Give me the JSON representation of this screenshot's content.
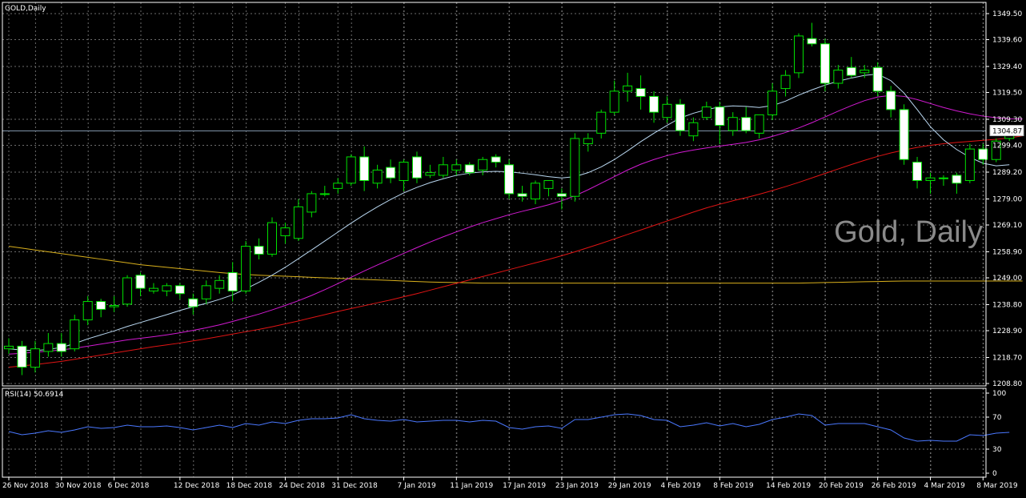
{
  "window": {
    "title": "GOLD,Daily"
  },
  "watermark": "Gold, Daily",
  "price_tag": "1304.87",
  "rsi_label": "RSI(14) 50.6914",
  "colors": {
    "background": "#000000",
    "grid": "#6b6b6b",
    "bull_candle": "#000000",
    "bear_candle": "#ffffff",
    "wick": "#00e000",
    "ma_fast": "#b9d7f0",
    "ma_mid": "#d21ad2",
    "ma_slow": "#e01414",
    "ma_long": "#d9b01c",
    "rsi_line": "#4a78ff"
  },
  "chart_data": [
    {
      "type": "candlestick",
      "title": "GOLD,Daily",
      "ylim": [
        1208.8,
        1354.5
      ],
      "y_ticks": [
        "1349.50",
        "1339.60",
        "1329.40",
        "1319.50",
        "1309.30",
        "1299.40",
        "1289.20",
        "1279.00",
        "1269.10",
        "1258.90",
        "1249.00",
        "1238.80",
        "1228.90",
        "1218.70",
        "1208.80"
      ],
      "x_tick_labels": [
        {
          "label": "26 Nov 2018",
          "index": 0
        },
        {
          "label": "30 Nov 2018",
          "index": 4
        },
        {
          "label": "6 Dec 2018",
          "index": 8
        },
        {
          "label": "12 Dec 2018",
          "index": 13
        },
        {
          "label": "18 Dec 2018",
          "index": 17
        },
        {
          "label": "24 Dec 2018",
          "index": 21
        },
        {
          "label": "31 Dec 2018",
          "index": 25
        },
        {
          "label": "7 Jan 2019",
          "index": 30
        },
        {
          "label": "11 Jan 2019",
          "index": 34
        },
        {
          "label": "17 Jan 2019",
          "index": 38
        },
        {
          "label": "23 Jan 2019",
          "index": 42
        },
        {
          "label": "29 Jan 2019",
          "index": 46
        },
        {
          "label": "4 Feb 2019",
          "index": 50
        },
        {
          "label": "8 Feb 2019",
          "index": 54
        },
        {
          "label": "14 Feb 2019",
          "index": 58
        },
        {
          "label": "20 Feb 2019",
          "index": 62
        },
        {
          "label": "26 Feb 2019",
          "index": 66
        },
        {
          "label": "4 Mar 2019",
          "index": 70
        },
        {
          "label": "8 Mar 2019",
          "index": 74
        }
      ],
      "last_price": 1304.87,
      "candles": [
        {
          "o": 1222.0,
          "h": 1226.0,
          "l": 1220.0,
          "c": 1223.0
        },
        {
          "o": 1223.0,
          "h": 1225.0,
          "l": 1212.0,
          "c": 1215.0
        },
        {
          "o": 1215.0,
          "h": 1225.0,
          "l": 1213.0,
          "c": 1222.0
        },
        {
          "o": 1221.0,
          "h": 1228.0,
          "l": 1219.0,
          "c": 1224.0
        },
        {
          "o": 1224.0,
          "h": 1228.0,
          "l": 1219.0,
          "c": 1221.0
        },
        {
          "o": 1222.0,
          "h": 1235.0,
          "l": 1221.0,
          "c": 1233.0
        },
        {
          "o": 1233.0,
          "h": 1242.0,
          "l": 1231.0,
          "c": 1240.0
        },
        {
          "o": 1240.0,
          "h": 1241.0,
          "l": 1234.0,
          "c": 1237.0
        },
        {
          "o": 1238.0,
          "h": 1242.0,
          "l": 1236.0,
          "c": 1238.5
        },
        {
          "o": 1239.0,
          "h": 1250.0,
          "l": 1238.0,
          "c": 1249.0
        },
        {
          "o": 1250.0,
          "h": 1251.0,
          "l": 1242.0,
          "c": 1245.0
        },
        {
          "o": 1244.0,
          "h": 1247.0,
          "l": 1243.0,
          "c": 1245.0
        },
        {
          "o": 1244.0,
          "h": 1247.0,
          "l": 1242.0,
          "c": 1246.0
        },
        {
          "o": 1246.0,
          "h": 1247.0,
          "l": 1241.0,
          "c": 1243.0
        },
        {
          "o": 1241.0,
          "h": 1243.0,
          "l": 1235.0,
          "c": 1238.0
        },
        {
          "o": 1241.0,
          "h": 1248.0,
          "l": 1239.0,
          "c": 1246.0
        },
        {
          "o": 1245.0,
          "h": 1250.0,
          "l": 1243.0,
          "c": 1248.0
        },
        {
          "o": 1251.0,
          "h": 1255.0,
          "l": 1240.0,
          "c": 1244.0
        },
        {
          "o": 1244.0,
          "h": 1263.0,
          "l": 1243.0,
          "c": 1261.0
        },
        {
          "o": 1261.0,
          "h": 1264.0,
          "l": 1256.0,
          "c": 1258.0
        },
        {
          "o": 1258.0,
          "h": 1272.0,
          "l": 1257.0,
          "c": 1270.0
        },
        {
          "o": 1265.0,
          "h": 1270.0,
          "l": 1262.0,
          "c": 1268.0
        },
        {
          "o": 1264.0,
          "h": 1279.0,
          "l": 1263.0,
          "c": 1276.0
        },
        {
          "o": 1274.0,
          "h": 1282.0,
          "l": 1272.0,
          "c": 1281.0
        },
        {
          "o": 1281.0,
          "h": 1284.0,
          "l": 1280.0,
          "c": 1281.0
        },
        {
          "o": 1283.0,
          "h": 1287.0,
          "l": 1281.0,
          "c": 1285.0
        },
        {
          "o": 1285.0,
          "h": 1296.0,
          "l": 1284.0,
          "c": 1295.0
        },
        {
          "o": 1295.0,
          "h": 1299.0,
          "l": 1282.0,
          "c": 1286.0
        },
        {
          "o": 1285.0,
          "h": 1292.0,
          "l": 1283.0,
          "c": 1290.0
        },
        {
          "o": 1291.0,
          "h": 1294.0,
          "l": 1285.0,
          "c": 1287.0
        },
        {
          "o": 1286.0,
          "h": 1294.0,
          "l": 1282.0,
          "c": 1293.0
        },
        {
          "o": 1295.0,
          "h": 1297.0,
          "l": 1285.0,
          "c": 1287.0
        },
        {
          "o": 1288.0,
          "h": 1292.0,
          "l": 1287.0,
          "c": 1289.0
        },
        {
          "o": 1288.0,
          "h": 1295.0,
          "l": 1287.0,
          "c": 1292.0
        },
        {
          "o": 1290.0,
          "h": 1294.0,
          "l": 1288.0,
          "c": 1292.0
        },
        {
          "o": 1292.0,
          "h": 1293.0,
          "l": 1288.0,
          "c": 1289.0
        },
        {
          "o": 1290.0,
          "h": 1295.0,
          "l": 1288.0,
          "c": 1294.0
        },
        {
          "o": 1295.0,
          "h": 1296.0,
          "l": 1291.0,
          "c": 1293.0
        },
        {
          "o": 1292.0,
          "h": 1294.0,
          "l": 1279.0,
          "c": 1281.0
        },
        {
          "o": 1281.0,
          "h": 1284.0,
          "l": 1278.0,
          "c": 1280.0
        },
        {
          "o": 1279.0,
          "h": 1286.0,
          "l": 1277.0,
          "c": 1285.0
        },
        {
          "o": 1283.0,
          "h": 1286.0,
          "l": 1280.0,
          "c": 1286.0
        },
        {
          "o": 1281.0,
          "h": 1283.0,
          "l": 1275.0,
          "c": 1280.0
        },
        {
          "o": 1280.0,
          "h": 1304.0,
          "l": 1278.0,
          "c": 1302.0
        },
        {
          "o": 1300.0,
          "h": 1304.0,
          "l": 1297.0,
          "c": 1302.0
        },
        {
          "o": 1304.0,
          "h": 1313.0,
          "l": 1302.0,
          "c": 1312.0
        },
        {
          "o": 1312.0,
          "h": 1324.0,
          "l": 1311.0,
          "c": 1320.0
        },
        {
          "o": 1320.0,
          "h": 1327.0,
          "l": 1316.0,
          "c": 1322.0
        },
        {
          "o": 1321.0,
          "h": 1326.0,
          "l": 1313.0,
          "c": 1318.0
        },
        {
          "o": 1318.0,
          "h": 1320.0,
          "l": 1308.0,
          "c": 1312.0
        },
        {
          "o": 1310.0,
          "h": 1318.0,
          "l": 1308.0,
          "c": 1315.0
        },
        {
          "o": 1315.0,
          "h": 1317.0,
          "l": 1303.0,
          "c": 1305.0
        },
        {
          "o": 1303.0,
          "h": 1310.0,
          "l": 1301.0,
          "c": 1308.0
        },
        {
          "o": 1310.0,
          "h": 1316.0,
          "l": 1309.0,
          "c": 1314.0
        },
        {
          "o": 1314.0,
          "h": 1316.0,
          "l": 1300.0,
          "c": 1307.0
        },
        {
          "o": 1305.0,
          "h": 1312.0,
          "l": 1303.0,
          "c": 1310.0
        },
        {
          "o": 1310.0,
          "h": 1314.0,
          "l": 1304.0,
          "c": 1305.0
        },
        {
          "o": 1304.0,
          "h": 1311.0,
          "l": 1302.0,
          "c": 1311.0
        },
        {
          "o": 1311.0,
          "h": 1323.0,
          "l": 1309.0,
          "c": 1320.0
        },
        {
          "o": 1321.0,
          "h": 1328.0,
          "l": 1318.0,
          "c": 1326.0
        },
        {
          "o": 1327.0,
          "h": 1342.0,
          "l": 1325.0,
          "c": 1341.0
        },
        {
          "o": 1340.0,
          "h": 1346.0,
          "l": 1337.0,
          "c": 1338.0
        },
        {
          "o": 1338.0,
          "h": 1340.0,
          "l": 1320.0,
          "c": 1323.0
        },
        {
          "o": 1323.0,
          "h": 1330.0,
          "l": 1321.0,
          "c": 1328.0
        },
        {
          "o": 1329.0,
          "h": 1333.0,
          "l": 1325.0,
          "c": 1326.0
        },
        {
          "o": 1327.0,
          "h": 1330.0,
          "l": 1325.0,
          "c": 1328.0
        },
        {
          "o": 1329.0,
          "h": 1331.0,
          "l": 1318.0,
          "c": 1320.0
        },
        {
          "o": 1320.0,
          "h": 1322.0,
          "l": 1310.0,
          "c": 1313.0
        },
        {
          "o": 1313.0,
          "h": 1315.0,
          "l": 1292.0,
          "c": 1294.0
        },
        {
          "o": 1293.0,
          "h": 1295.0,
          "l": 1283.0,
          "c": 1286.0
        },
        {
          "o": 1286.0,
          "h": 1289.0,
          "l": 1281.0,
          "c": 1287.0
        },
        {
          "o": 1287.0,
          "h": 1288.0,
          "l": 1284.0,
          "c": 1287.0
        },
        {
          "o": 1288.0,
          "h": 1289.0,
          "l": 1281.0,
          "c": 1285.0
        },
        {
          "o": 1286.0,
          "h": 1300.0,
          "l": 1285.0,
          "c": 1298.0
        },
        {
          "o": 1298.0,
          "h": 1300.0,
          "l": 1292.0,
          "c": 1294.0
        },
        {
          "o": 1294.0,
          "h": 1302.0,
          "l": 1293.0,
          "c": 1301.0
        },
        {
          "o": 1302.0,
          "h": 1306.0,
          "l": 1301.0,
          "c": 1305.0
        }
      ],
      "series": [
        {
          "kind": "ma_slow",
          "values": [
            1261.0,
            1260.3,
            1259.6,
            1258.9,
            1258.2,
            1257.5,
            1256.8,
            1256.1,
            1255.4,
            1254.7,
            1254.0,
            1253.5,
            1253.0,
            1252.5,
            1252.0,
            1251.5,
            1251.0,
            1250.6,
            1250.3,
            1250.0,
            1249.8,
            1249.6,
            1249.4,
            1249.2,
            1249.0,
            1248.8,
            1248.6,
            1248.4,
            1248.2,
            1248.0,
            1247.8,
            1247.6,
            1247.4,
            1247.3,
            1247.2,
            1247.1,
            1247.0,
            1247.0,
            1247.0,
            1247.0,
            1247.0,
            1247.0,
            1247.0,
            1247.0,
            1247.0,
            1247.0,
            1247.0,
            1247.0,
            1247.0,
            1247.0,
            1247.0,
            1247.0,
            1247.0,
            1247.0,
            1247.0,
            1247.0,
            1247.0,
            1247.0,
            1247.0,
            1247.0,
            1247.0,
            1247.1,
            1247.2,
            1247.3,
            1247.4,
            1247.5,
            1247.6,
            1247.7,
            1247.8,
            1247.8,
            1247.8,
            1247.8,
            1247.8,
            1247.8,
            1247.8,
            1247.8,
            1247.8,
            1247.8
          ]
        },
        {
          "kind": "ma_red",
          "values": [
            1215.0,
            1215.5,
            1216.0,
            1216.6,
            1217.2,
            1218.0,
            1218.8,
            1219.6,
            1220.4,
            1221.2,
            1222.0,
            1222.8,
            1223.5,
            1224.2,
            1225.0,
            1225.8,
            1226.7,
            1227.6,
            1228.5,
            1229.4,
            1230.4,
            1231.5,
            1232.6,
            1233.8,
            1235.0,
            1236.2,
            1237.3,
            1238.4,
            1239.5,
            1240.6,
            1241.8,
            1243.0,
            1244.3,
            1245.6,
            1246.9,
            1248.2,
            1249.5,
            1250.8,
            1252.1,
            1253.4,
            1254.7,
            1256.0,
            1257.4,
            1258.9,
            1260.5,
            1262.1,
            1263.8,
            1265.5,
            1267.2,
            1268.9,
            1270.6,
            1272.3,
            1274.0,
            1275.6,
            1277.0,
            1278.3,
            1279.5,
            1280.8,
            1282.2,
            1283.7,
            1285.3,
            1287.0,
            1288.7,
            1290.4,
            1292.1,
            1293.7,
            1295.2,
            1296.5,
            1297.6,
            1298.6,
            1299.4,
            1300.0,
            1300.5,
            1300.9,
            1301.3,
            1301.7,
            1302.2,
            1303.0
          ]
        },
        {
          "kind": "ma_mid",
          "values": [
            1220.0,
            1220.3,
            1220.7,
            1221.1,
            1221.6,
            1222.2,
            1223.0,
            1223.8,
            1224.6,
            1225.4,
            1226.0,
            1226.6,
            1227.3,
            1228.1,
            1229.0,
            1230.0,
            1231.1,
            1232.4,
            1233.8,
            1235.2,
            1236.8,
            1238.5,
            1240.3,
            1242.3,
            1244.5,
            1246.8,
            1249.2,
            1251.6,
            1253.9,
            1256.1,
            1258.3,
            1260.5,
            1262.6,
            1264.6,
            1266.5,
            1268.3,
            1270.0,
            1271.5,
            1273.0,
            1274.3,
            1275.5,
            1276.8,
            1278.3,
            1280.2,
            1282.5,
            1285.0,
            1287.5,
            1290.0,
            1292.2,
            1294.0,
            1295.5,
            1296.7,
            1297.6,
            1298.4,
            1299.1,
            1299.8,
            1300.5,
            1301.5,
            1302.8,
            1304.3,
            1306.0,
            1308.0,
            1310.2,
            1312.4,
            1314.5,
            1316.4,
            1317.8,
            1318.4,
            1318.0,
            1316.8,
            1315.3,
            1313.8,
            1312.5,
            1311.4,
            1310.5,
            1309.9,
            1309.5,
            1309.4
          ]
        },
        {
          "kind": "ma_fast",
          "values": [
            1222.0,
            1221.5,
            1221.3,
            1221.8,
            1222.5,
            1224.0,
            1225.8,
            1227.3,
            1228.8,
            1230.5,
            1232.0,
            1233.5,
            1235.0,
            1236.6,
            1238.0,
            1239.3,
            1240.8,
            1242.5,
            1244.8,
            1247.3,
            1250.0,
            1253.0,
            1256.3,
            1259.6,
            1263.0,
            1266.4,
            1269.8,
            1273.0,
            1276.0,
            1278.8,
            1281.3,
            1283.4,
            1285.2,
            1286.7,
            1288.0,
            1288.8,
            1289.3,
            1289.5,
            1289.3,
            1288.8,
            1288.2,
            1287.5,
            1287.0,
            1287.5,
            1289.0,
            1291.2,
            1294.0,
            1297.3,
            1300.8,
            1304.0,
            1307.0,
            1309.8,
            1311.6,
            1313.0,
            1314.0,
            1314.4,
            1314.2,
            1313.8,
            1314.5,
            1316.2,
            1318.5,
            1320.5,
            1322.3,
            1323.8,
            1325.0,
            1326.0,
            1326.5,
            1324.0,
            1319.3,
            1313.0,
            1306.5,
            1301.5,
            1297.8,
            1294.8,
            1292.6,
            1291.6,
            1292.0
          ]
        }
      ]
    },
    {
      "type": "line",
      "title": "RSI(14) 50.6914",
      "ylim": [
        0,
        100
      ],
      "y_ticks": [
        "100",
        "70",
        "30",
        "0"
      ],
      "series": [
        {
          "name": "RSI(14)",
          "values": [
            52,
            48,
            50,
            53,
            51,
            54,
            58,
            56,
            57,
            60,
            58,
            58,
            59,
            57,
            54,
            57,
            60,
            57,
            62,
            60,
            64,
            62,
            66,
            68,
            68,
            69,
            73,
            68,
            66,
            65,
            67,
            64,
            65,
            66,
            66,
            64,
            66,
            65,
            57,
            55,
            58,
            59,
            56,
            67,
            67,
            70,
            73,
            74,
            72,
            67,
            66,
            58,
            60,
            63,
            59,
            62,
            58,
            61,
            67,
            70,
            74,
            72,
            60,
            62,
            62,
            62,
            58,
            54,
            44,
            40,
            41,
            40,
            40,
            48,
            47,
            50,
            51
          ]
        }
      ]
    }
  ]
}
